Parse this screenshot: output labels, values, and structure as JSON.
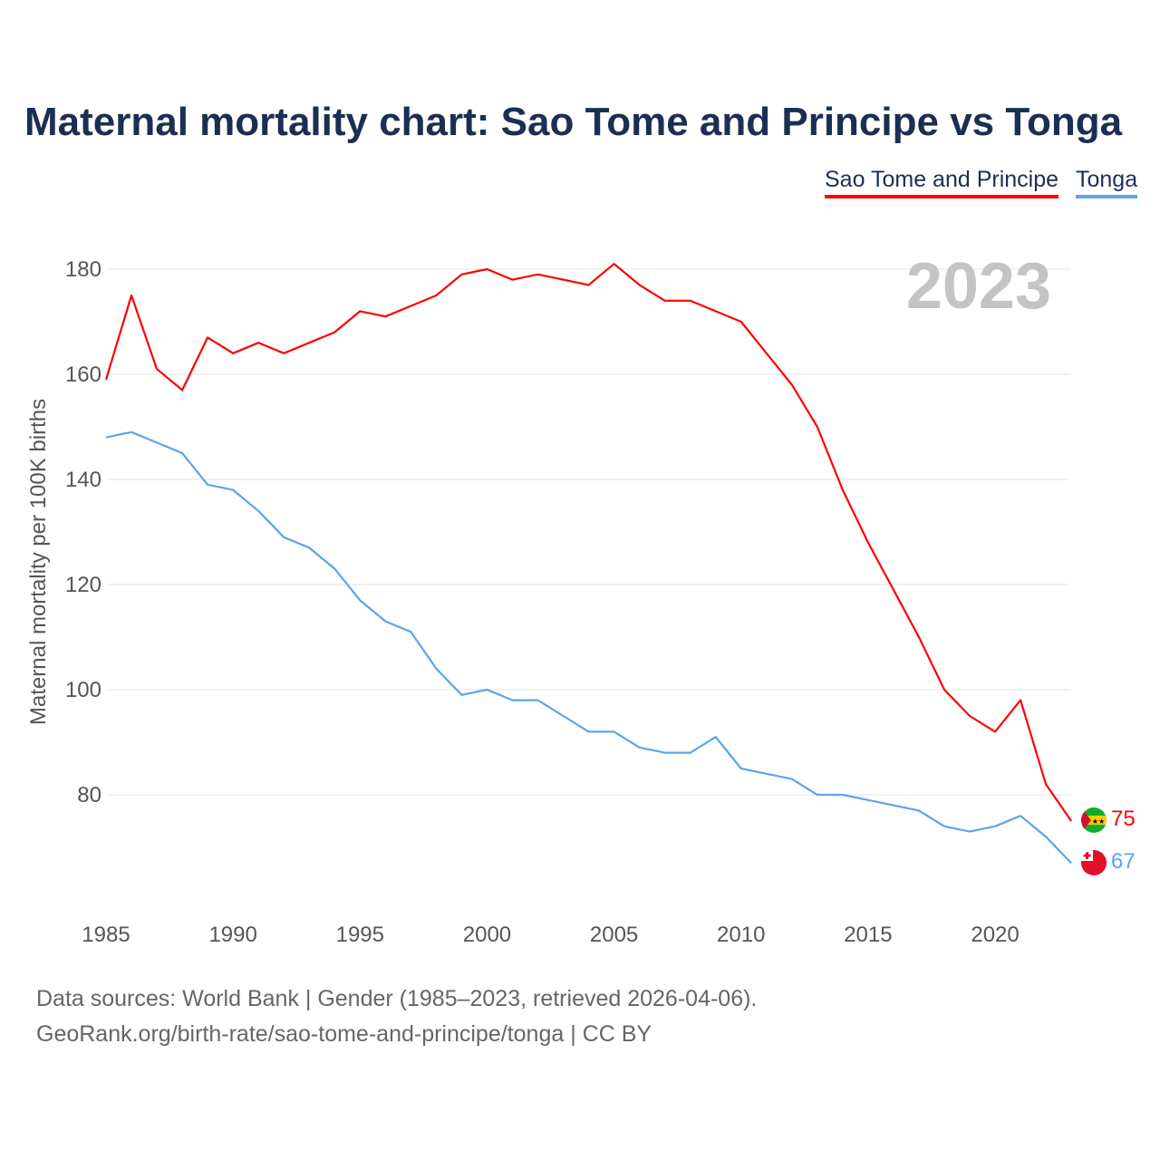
{
  "chart_data": {
    "type": "line",
    "title": "Maternal mortality chart: Sao Tome and Principe vs Tonga",
    "ylabel": "Maternal mortality per 100K births",
    "xlabel": "",
    "year_label": "2023",
    "x": [
      1985,
      1986,
      1987,
      1988,
      1989,
      1990,
      1991,
      1992,
      1993,
      1994,
      1995,
      1996,
      1997,
      1998,
      1999,
      2000,
      2001,
      2002,
      2003,
      2004,
      2005,
      2006,
      2007,
      2008,
      2009,
      2010,
      2011,
      2012,
      2013,
      2014,
      2015,
      2016,
      2017,
      2018,
      2019,
      2020,
      2021,
      2022,
      2023
    ],
    "series": [
      {
        "name": "Sao Tome and Principe",
        "color": "#ff0000",
        "end_label": "75",
        "values": [
          159,
          175,
          161,
          157,
          167,
          164,
          166,
          164,
          166,
          168,
          172,
          171,
          173,
          175,
          179,
          180,
          178,
          179,
          178,
          177,
          181,
          177,
          174,
          174,
          172,
          170,
          164,
          158,
          150,
          138,
          128,
          119,
          110,
          100,
          95,
          92,
          98,
          82,
          75
        ]
      },
      {
        "name": "Tonga",
        "color": "#5aa5ee",
        "end_label": "67",
        "values": [
          148,
          149,
          147,
          145,
          139,
          138,
          134,
          129,
          127,
          123,
          117,
          113,
          111,
          104,
          99,
          100,
          98,
          98,
          95,
          92,
          92,
          89,
          88,
          88,
          91,
          85,
          84,
          83,
          80,
          80,
          79,
          78,
          77,
          74,
          73,
          74,
          76,
          72,
          67
        ]
      }
    ],
    "xticks": [
      "1985",
      "1990",
      "1995",
      "2000",
      "2005",
      "2010",
      "2015",
      "2020"
    ],
    "yticks": [
      "80",
      "100",
      "120",
      "140",
      "160",
      "180"
    ],
    "ylim": [
      58,
      190
    ],
    "xlim": [
      1985,
      2023
    ],
    "grid": true,
    "legend_position": "top-right"
  },
  "footer": {
    "line1": "Data sources: World Bank | Gender (1985–2023, retrieved 2026-04-06).",
    "line2": "GeoRank.org/birth-rate/sao-tome-and-principe/tonga | CC BY"
  }
}
